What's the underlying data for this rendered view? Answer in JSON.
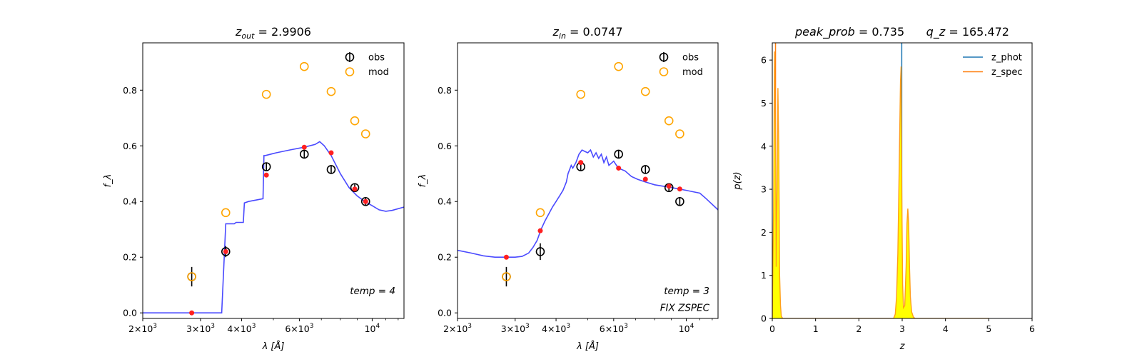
{
  "chart_data": [
    {
      "type": "scatter",
      "title": "z_out = 2.9906",
      "title_parts": {
        "symbol": "z",
        "sub": "out",
        "equals": " = 2.9906"
      },
      "xlabel": "λ [Å]",
      "ylabel": "f_λ",
      "x_scale": "log",
      "xlim": [
        2000,
        12500
      ],
      "ylim": [
        -0.02,
        0.97
      ],
      "x_ticks": [
        {
          "value": 2000,
          "mant": "2×10",
          "exp": "3"
        },
        {
          "value": 3000,
          "mant": "3×10",
          "exp": "3"
        },
        {
          "value": 4000,
          "mant": "4×10",
          "exp": "3"
        },
        {
          "value": 6000,
          "mant": "6×10",
          "exp": "3"
        },
        {
          "value": 10000,
          "mant": "10",
          "exp": "4"
        }
      ],
      "x_minor_ticks": [
        5000,
        7000,
        8000,
        9000,
        11000,
        12000
      ],
      "y_ticks": [
        0.0,
        0.2,
        0.4,
        0.6,
        0.8
      ],
      "y_tick_labels": [
        "0.0",
        "0.2",
        "0.4",
        "0.6",
        "0.8"
      ],
      "legend": {
        "position": "top-right",
        "entries": [
          "obs",
          "mod"
        ]
      },
      "annotations": [
        "temp = 4"
      ],
      "series": [
        {
          "name": "obs",
          "kind": "errorbar",
          "color": "#000000",
          "x": [
            2820,
            3580,
            4760,
            6210,
            7500,
            8850,
            9550
          ],
          "y": [
            0.13,
            0.22,
            0.525,
            0.57,
            0.515,
            0.45,
            0.4
          ],
          "yerr": [
            0.035,
            0.02,
            0.015,
            0.015,
            0.015,
            0.012,
            0.012
          ]
        },
        {
          "name": "mod",
          "kind": "scatter",
          "color": "#ffa500",
          "x": [
            2820,
            3580,
            4760,
            6210,
            7500,
            8850,
            9550
          ],
          "y": [
            0.13,
            0.36,
            0.785,
            0.885,
            0.795,
            0.69,
            0.643
          ]
        },
        {
          "name": "model photometry",
          "kind": "scatter",
          "color": "#ff2020",
          "x": [
            2820,
            3580,
            4760,
            6210,
            7500,
            8850,
            9550
          ],
          "y": [
            0.0,
            0.22,
            0.495,
            0.595,
            0.575,
            0.445,
            0.4
          ]
        },
        {
          "name": "SED template",
          "kind": "line",
          "color": "#4040ff",
          "x": [
            2000,
            3450,
            3480,
            3580,
            3700,
            3800,
            3850,
            4050,
            4080,
            4200,
            4650,
            4680,
            4720,
            5100,
            5600,
            6200,
            6700,
            6920,
            7150,
            7500,
            8000,
            8500,
            9000,
            9500,
            10000,
            10500,
            11000,
            11500,
            12500
          ],
          "y": [
            0.0,
            0.0,
            0.0,
            0.32,
            0.32,
            0.32,
            0.325,
            0.325,
            0.395,
            0.4,
            0.41,
            0.565,
            0.565,
            0.575,
            0.585,
            0.595,
            0.605,
            0.615,
            0.6,
            0.565,
            0.5,
            0.45,
            0.42,
            0.4,
            0.385,
            0.37,
            0.365,
            0.368,
            0.38
          ]
        }
      ]
    },
    {
      "type": "scatter",
      "title": "z_in = 0.0747",
      "title_parts": {
        "symbol": "z",
        "sub": "in",
        "equals": " = 0.0747"
      },
      "xlabel": "λ [Å]",
      "ylabel": "f_λ",
      "x_scale": "log",
      "xlim": [
        2000,
        12500
      ],
      "ylim": [
        -0.02,
        0.97
      ],
      "x_ticks": [
        {
          "value": 2000,
          "mant": "2×10",
          "exp": "3"
        },
        {
          "value": 3000,
          "mant": "3×10",
          "exp": "3"
        },
        {
          "value": 4000,
          "mant": "4×10",
          "exp": "3"
        },
        {
          "value": 6000,
          "mant": "6×10",
          "exp": "3"
        },
        {
          "value": 10000,
          "mant": "10",
          "exp": "4"
        }
      ],
      "x_minor_ticks": [
        5000,
        7000,
        8000,
        9000,
        11000,
        12000
      ],
      "y_ticks": [
        0.0,
        0.2,
        0.4,
        0.6,
        0.8
      ],
      "y_tick_labels": [
        "0.0",
        "0.2",
        "0.4",
        "0.6",
        "0.8"
      ],
      "legend": {
        "position": "top-right",
        "entries": [
          "obs",
          "mod"
        ]
      },
      "annotations": [
        "temp = 3",
        "FIX ZSPEC"
      ],
      "series": [
        {
          "name": "obs",
          "kind": "errorbar",
          "color": "#000000",
          "x": [
            2820,
            3580,
            4760,
            6210,
            7500,
            8850,
            9550
          ],
          "y": [
            0.13,
            0.22,
            0.525,
            0.57,
            0.515,
            0.45,
            0.4
          ],
          "yerr": [
            0.035,
            0.03,
            0.015,
            0.015,
            0.015,
            0.012,
            0.012
          ]
        },
        {
          "name": "mod",
          "kind": "scatter",
          "color": "#ffa500",
          "x": [
            2820,
            3580,
            4760,
            6210,
            7500,
            8850,
            9550
          ],
          "y": [
            0.13,
            0.36,
            0.785,
            0.885,
            0.795,
            0.69,
            0.643
          ]
        },
        {
          "name": "model photometry",
          "kind": "scatter",
          "color": "#ff2020",
          "x": [
            2820,
            3580,
            4760,
            6210,
            7500,
            8850,
            9550
          ],
          "y": [
            0.2,
            0.295,
            0.54,
            0.52,
            0.48,
            0.455,
            0.445
          ]
        },
        {
          "name": "SED template",
          "kind": "line",
          "color": "#4040ff",
          "x": [
            2000,
            2200,
            2400,
            2600,
            2800,
            3000,
            3150,
            3300,
            3400,
            3500,
            3600,
            3700,
            3800,
            3900,
            4000,
            4050,
            4100,
            4200,
            4300,
            4350,
            4450,
            4500,
            4600,
            4700,
            4800,
            4900,
            5000,
            5100,
            5200,
            5300,
            5400,
            5500,
            5600,
            5700,
            5800,
            6000,
            6200,
            6500,
            6800,
            7100,
            7500,
            8000,
            8500,
            9000,
            9500,
            10000,
            10500,
            11000,
            11500,
            12500
          ],
          "y": [
            0.225,
            0.215,
            0.205,
            0.2,
            0.2,
            0.2,
            0.203,
            0.215,
            0.235,
            0.26,
            0.3,
            0.33,
            0.355,
            0.38,
            0.4,
            0.41,
            0.42,
            0.44,
            0.47,
            0.5,
            0.53,
            0.52,
            0.54,
            0.57,
            0.585,
            0.58,
            0.575,
            0.585,
            0.56,
            0.575,
            0.555,
            0.57,
            0.54,
            0.56,
            0.53,
            0.545,
            0.52,
            0.51,
            0.49,
            0.48,
            0.47,
            0.46,
            0.455,
            0.45,
            0.445,
            0.44,
            0.435,
            0.43,
            0.41,
            0.37
          ]
        }
      ]
    },
    {
      "type": "area",
      "title": "peak_prob = 0.735     q_z = 165.472",
      "title_parts": {
        "left": "peak_prob",
        "left_value": " = 0.735",
        "right": "q_z",
        "right_value": " = 165.472"
      },
      "xlabel": "z",
      "ylabel": "p(z)",
      "xlim": [
        0,
        6
      ],
      "ylim": [
        0,
        6.4
      ],
      "x_ticks": [
        0,
        1,
        2,
        3,
        4,
        5,
        6
      ],
      "y_ticks": [
        0,
        1,
        2,
        3,
        4,
        5,
        6
      ],
      "legend": {
        "position": "top-right",
        "entries": [
          "z_phot",
          "z_spec"
        ]
      },
      "series": [
        {
          "name": "z_phot",
          "kind": "vline",
          "color": "#1f77b4",
          "x": 2.99
        },
        {
          "name": "z_spec",
          "kind": "vline",
          "color": "#ff7f0e",
          "x": 0.0747
        },
        {
          "name": "p(z)",
          "kind": "filled-line",
          "color": "#ffff00",
          "x": [
            0.0,
            0.03,
            0.05,
            0.08,
            0.09,
            0.11,
            0.13,
            0.15,
            0.17,
            0.19,
            0.21,
            0.24,
            0.5,
            2.8,
            2.84,
            2.87,
            2.9,
            2.93,
            2.96,
            2.975,
            2.99,
            3.01,
            3.03,
            3.06,
            3.09,
            3.11,
            3.13,
            3.15,
            3.17,
            3.19,
            3.22,
            3.26,
            3.3,
            5.0
          ],
          "y": [
            0.0,
            2.5,
            6.2,
            3.5,
            1.2,
            3.0,
            5.35,
            4.0,
            1.0,
            0.3,
            0.05,
            0.0,
            0.0,
            0.0,
            0.1,
            0.5,
            1.5,
            3.5,
            5.5,
            5.85,
            3.0,
            0.8,
            0.25,
            0.3,
            1.2,
            2.2,
            2.55,
            2.2,
            1.2,
            0.5,
            0.15,
            0.03,
            0.0,
            0.0
          ]
        }
      ]
    }
  ]
}
